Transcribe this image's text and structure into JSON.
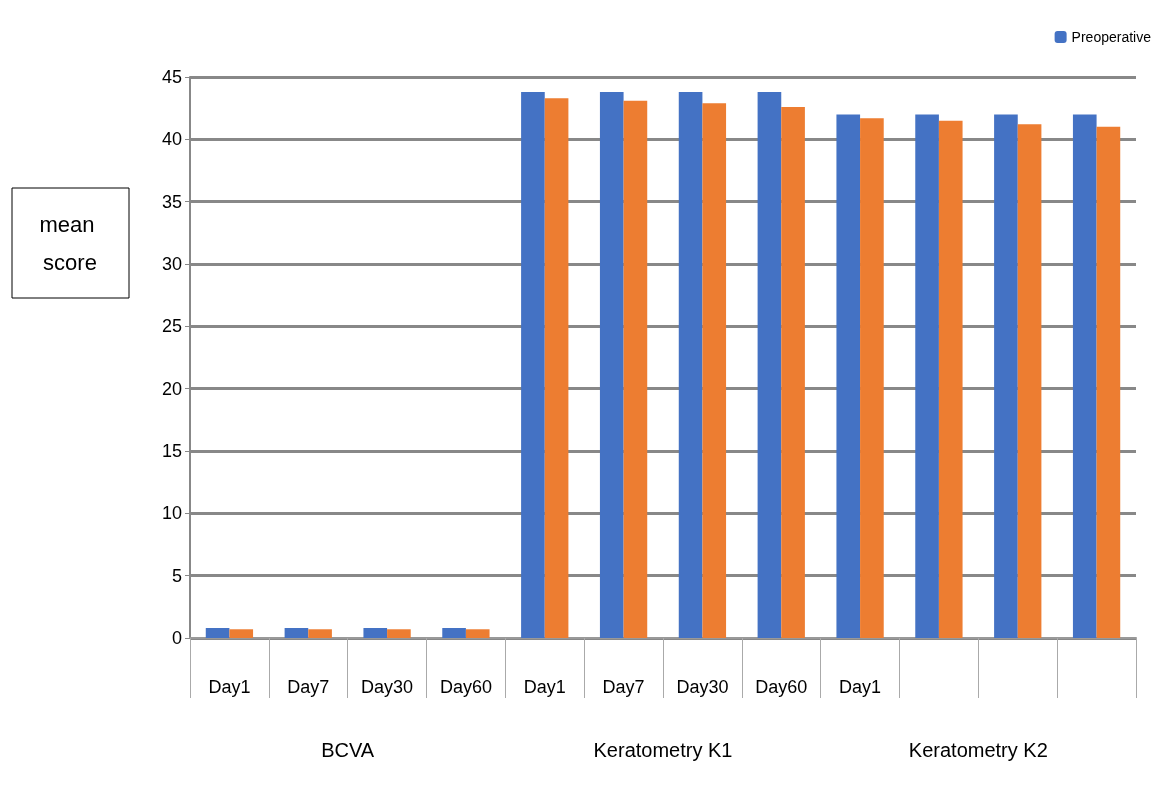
{
  "chart_data": {
    "type": "bar",
    "ylabel": "mean score",
    "categories": [
      "Day1",
      "Day7",
      "Day30",
      "Day60",
      "Day1",
      "Day7",
      "Day30",
      "Day60",
      "Day1",
      null,
      null,
      null
    ],
    "series": [
      {
        "name": "Preoperative",
        "color": "#4472c4",
        "values": [
          0.8,
          0.8,
          0.8,
          0.8,
          43.8,
          43.8,
          43.8,
          43.8,
          42.0,
          42.0,
          42.0,
          42.0
        ]
      },
      {
        "color": "#ed7d31",
        "values": [
          0.7,
          0.7,
          0.7,
          0.7,
          43.3,
          43.1,
          42.9,
          42.6,
          41.7,
          41.5,
          41.2,
          41.0
        ]
      }
    ],
    "ylim": [
      0,
      45
    ],
    "yticks": [
      0,
      5,
      10,
      15,
      20,
      25,
      30,
      35,
      40,
      45
    ],
    "grid": "y",
    "legend": "top right",
    "annotations": [
      "BCVA",
      "Keratometry K1",
      "Keratometry K2"
    ]
  }
}
